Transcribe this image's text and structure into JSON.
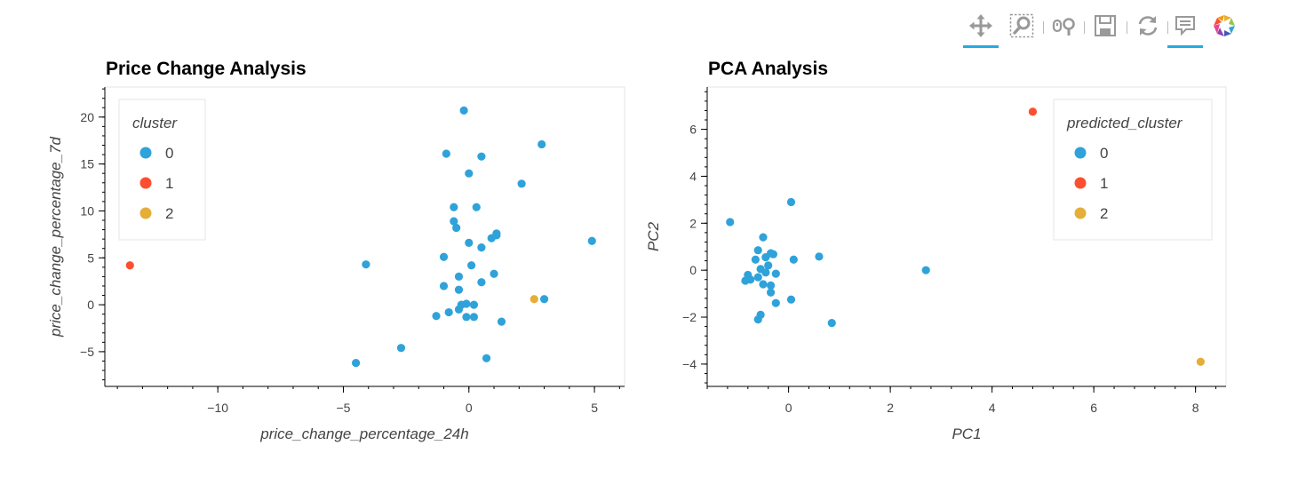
{
  "toolbar": {
    "tools": [
      {
        "name": "pan-tool",
        "icon": "pan-icon",
        "active": true
      },
      {
        "name": "box-zoom-tool",
        "icon": "box-zoom-icon",
        "active": false
      },
      {
        "name": "wheel-zoom-tool",
        "icon": "wheel-zoom-icon",
        "active": false
      },
      {
        "name": "save-tool",
        "icon": "save-icon",
        "active": false
      },
      {
        "name": "reset-tool",
        "icon": "reset-icon",
        "active": false
      },
      {
        "name": "hover-tool",
        "icon": "hover-icon",
        "active": true
      },
      {
        "name": "bokeh-logo",
        "icon": "bokeh-logo-icon",
        "active": false
      }
    ]
  },
  "colors": {
    "cluster_0": "#30a2da",
    "cluster_1": "#fc4f30",
    "cluster_2": "#e5ae38",
    "accent": "#26aae1"
  },
  "chart_data": [
    {
      "type": "scatter",
      "title": "Price Change Analysis",
      "xlabel": "price_change_percentage_24h",
      "ylabel": "price_change_percentage_7d",
      "xlim": [
        -14.5,
        6.2
      ],
      "ylim": [
        -8.7,
        23.2
      ],
      "xticks": [
        -10,
        -5,
        0,
        5
      ],
      "yticks": [
        -5,
        0,
        5,
        10,
        15,
        20
      ],
      "grid": false,
      "legend": {
        "title": "cluster",
        "position": "top-left"
      },
      "series": [
        {
          "name": "0",
          "color": "#30a2da",
          "points": [
            [
              -0.2,
              20.7
            ],
            [
              -0.9,
              16.1
            ],
            [
              0.5,
              15.8
            ],
            [
              2.9,
              17.1
            ],
            [
              0.0,
              14.0
            ],
            [
              2.1,
              12.9
            ],
            [
              -0.6,
              10.4
            ],
            [
              0.3,
              10.4
            ],
            [
              -0.6,
              8.9
            ],
            [
              -0.5,
              8.2
            ],
            [
              1.1,
              7.6
            ],
            [
              1.1,
              7.4
            ],
            [
              0.9,
              7.1
            ],
            [
              0.0,
              6.6
            ],
            [
              0.5,
              6.1
            ],
            [
              4.9,
              6.8
            ],
            [
              -4.1,
              4.3
            ],
            [
              -1.0,
              5.1
            ],
            [
              0.1,
              4.2
            ],
            [
              1.0,
              3.3
            ],
            [
              -0.4,
              3.0
            ],
            [
              0.5,
              2.4
            ],
            [
              -1.0,
              2.0
            ],
            [
              -0.4,
              1.6
            ],
            [
              -0.3,
              0.0
            ],
            [
              -0.1,
              0.1
            ],
            [
              0.2,
              0.0
            ],
            [
              -0.4,
              -0.5
            ],
            [
              -0.8,
              -0.8
            ],
            [
              -1.3,
              -1.2
            ],
            [
              -0.1,
              -1.3
            ],
            [
              0.2,
              -1.3
            ],
            [
              1.3,
              -1.8
            ],
            [
              3.0,
              0.6
            ],
            [
              -2.7,
              -4.6
            ],
            [
              -4.5,
              -6.2
            ],
            [
              0.7,
              -5.7
            ]
          ]
        },
        {
          "name": "1",
          "color": "#fc4f30",
          "points": [
            [
              -13.5,
              4.2
            ]
          ]
        },
        {
          "name": "2",
          "color": "#e5ae38",
          "points": [
            [
              2.6,
              0.6
            ]
          ]
        }
      ]
    },
    {
      "type": "scatter",
      "title": "PCA Analysis",
      "xlabel": "PC1",
      "ylabel": "PC2",
      "xlim": [
        -1.6,
        8.6
      ],
      "ylim": [
        -4.95,
        7.8
      ],
      "xticks": [
        0,
        2,
        4,
        6,
        8
      ],
      "yticks": [
        -4,
        -2,
        0,
        2,
        4,
        6
      ],
      "grid": false,
      "legend": {
        "title": "predicted_cluster",
        "position": "top-right"
      },
      "series": [
        {
          "name": "0",
          "color": "#30a2da",
          "points": [
            [
              -1.15,
              2.05
            ],
            [
              0.05,
              2.9
            ],
            [
              -0.5,
              1.4
            ],
            [
              -0.6,
              0.85
            ],
            [
              -0.35,
              0.72
            ],
            [
              -0.3,
              0.68
            ],
            [
              0.6,
              0.58
            ],
            [
              -0.45,
              0.55
            ],
            [
              -0.65,
              0.45
            ],
            [
              0.1,
              0.45
            ],
            [
              -0.4,
              0.2
            ],
            [
              -0.55,
              0.05
            ],
            [
              -0.45,
              -0.1
            ],
            [
              -0.25,
              -0.15
            ],
            [
              -0.8,
              -0.2
            ],
            [
              -0.6,
              -0.3
            ],
            [
              -0.75,
              -0.4
            ],
            [
              -0.85,
              -0.45
            ],
            [
              -0.5,
              -0.6
            ],
            [
              -0.35,
              -0.65
            ],
            [
              -0.35,
              -0.95
            ],
            [
              0.05,
              -1.25
            ],
            [
              -0.25,
              -1.4
            ],
            [
              -0.55,
              -1.9
            ],
            [
              -0.6,
              -2.1
            ],
            [
              0.85,
              -2.25
            ],
            [
              2.7,
              0.0
            ]
          ]
        },
        {
          "name": "1",
          "color": "#fc4f30",
          "points": [
            [
              4.8,
              6.75
            ]
          ]
        },
        {
          "name": "2",
          "color": "#e5ae38",
          "points": [
            [
              8.1,
              -3.9
            ]
          ]
        }
      ]
    }
  ]
}
